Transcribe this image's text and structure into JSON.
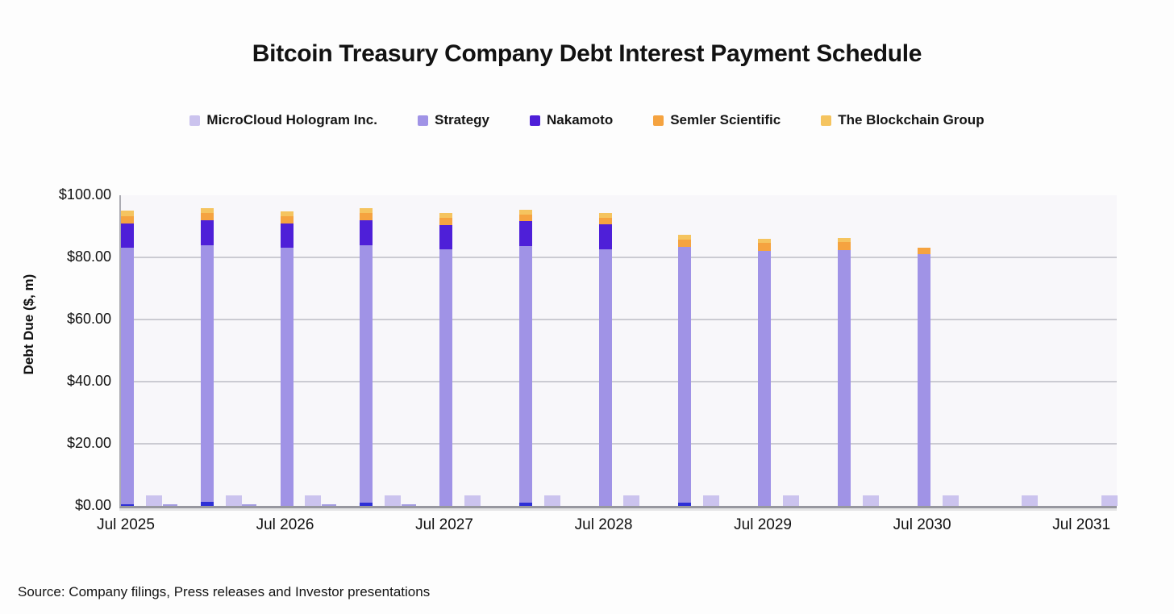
{
  "source": {
    "text": "Source: Company filings, Press releases and Investor presentations"
  },
  "chart_data": {
    "type": "bar",
    "stacked": true,
    "title": "Bitcoin Treasury Company Debt Interest Payment Schedule",
    "ylabel": "Debt Due ($, m)",
    "xlabel": "",
    "ylim": [
      0,
      100
    ],
    "grid": "horizontal",
    "legend_position": "top",
    "yticks": [
      {
        "v": 0,
        "label": "$0.00"
      },
      {
        "v": 20,
        "label": "$20.00"
      },
      {
        "v": 40,
        "label": "$40.00"
      },
      {
        "v": 60,
        "label": "$60.00"
      },
      {
        "v": 80,
        "label": "$80.00"
      },
      {
        "v": 100,
        "label": "$100.00"
      }
    ],
    "xticks": [
      {
        "m": 0,
        "label": "Jul 2025"
      },
      {
        "m": 12,
        "label": "Jul 2026"
      },
      {
        "m": 24,
        "label": "Jul 2027"
      },
      {
        "m": 36,
        "label": "Jul 2028"
      },
      {
        "m": 48,
        "label": "Jul 2029"
      },
      {
        "m": 60,
        "label": "Jul 2030"
      },
      {
        "m": 72,
        "label": "Jul 2031"
      }
    ],
    "palette": {
      "microcloud": "#CBC3EE",
      "strategy": "#A093E6",
      "nakamoto": "#4E1FD8",
      "nakamoto_early": "#2E30D6",
      "semler": "#F5A340",
      "blockchain": "#F5C45F",
      "mini": "#A49CE0"
    },
    "series": [
      {
        "name": "MicroCloud Hologram Inc.",
        "color": "microcloud"
      },
      {
        "name": "Strategy",
        "color": "strategy"
      },
      {
        "name": "Nakamoto",
        "color": "nakamoto"
      },
      {
        "name": "Semler Scientific",
        "color": "semler"
      },
      {
        "name": "The Blockchain Group",
        "color": "blockchain"
      }
    ],
    "bars": [
      {
        "kind": "semi",
        "m": 0,
        "segments": [
          {
            "c": "nakamoto_early",
            "v": 0.4
          },
          {
            "c": "strategy",
            "v": 82.6
          },
          {
            "c": "nakamoto",
            "v": 8.0
          },
          {
            "c": "semler",
            "v": 2.3
          },
          {
            "c": "blockchain",
            "v": 1.7
          }
        ]
      },
      {
        "kind": "micro",
        "m": 2,
        "segments": [
          {
            "c": "microcloud",
            "v": 3.5
          }
        ]
      },
      {
        "kind": "mini",
        "m": 3.2,
        "segments": [
          {
            "c": "mini",
            "v": 0.6
          }
        ]
      },
      {
        "kind": "semi",
        "m": 6,
        "segments": [
          {
            "c": "nakamoto_early",
            "v": 1.3
          },
          {
            "c": "strategy",
            "v": 82.7
          },
          {
            "c": "nakamoto",
            "v": 8.0
          },
          {
            "c": "semler",
            "v": 2.2
          },
          {
            "c": "blockchain",
            "v": 1.6
          }
        ]
      },
      {
        "kind": "micro",
        "m": 8,
        "segments": [
          {
            "c": "microcloud",
            "v": 3.5
          }
        ]
      },
      {
        "kind": "mini",
        "m": 9.2,
        "segments": [
          {
            "c": "mini",
            "v": 0.6
          }
        ]
      },
      {
        "kind": "semi",
        "m": 12,
        "segments": [
          {
            "c": "strategy",
            "v": 83.0
          },
          {
            "c": "nakamoto",
            "v": 8.0
          },
          {
            "c": "semler",
            "v": 2.2
          },
          {
            "c": "blockchain",
            "v": 1.6
          }
        ]
      },
      {
        "kind": "micro",
        "m": 14,
        "segments": [
          {
            "c": "microcloud",
            "v": 3.5
          }
        ]
      },
      {
        "kind": "mini",
        "m": 15.2,
        "segments": [
          {
            "c": "mini",
            "v": 0.6
          }
        ]
      },
      {
        "kind": "semi",
        "m": 18,
        "segments": [
          {
            "c": "nakamoto_early",
            "v": 1.0
          },
          {
            "c": "strategy",
            "v": 82.9
          },
          {
            "c": "nakamoto",
            "v": 8.1
          },
          {
            "c": "semler",
            "v": 2.2
          },
          {
            "c": "blockchain",
            "v": 1.6
          }
        ]
      },
      {
        "kind": "micro",
        "m": 20,
        "segments": [
          {
            "c": "microcloud",
            "v": 3.5
          }
        ]
      },
      {
        "kind": "mini",
        "m": 21.2,
        "segments": [
          {
            "c": "mini",
            "v": 0.6
          }
        ]
      },
      {
        "kind": "semi",
        "m": 24,
        "segments": [
          {
            "c": "strategy",
            "v": 82.6
          },
          {
            "c": "nakamoto",
            "v": 7.9
          },
          {
            "c": "semler",
            "v": 2.2
          },
          {
            "c": "blockchain",
            "v": 1.5
          }
        ]
      },
      {
        "kind": "micro",
        "m": 26,
        "segments": [
          {
            "c": "microcloud",
            "v": 3.5
          }
        ]
      },
      {
        "kind": "semi",
        "m": 30,
        "segments": [
          {
            "c": "nakamoto_early",
            "v": 1.0
          },
          {
            "c": "strategy",
            "v": 82.6
          },
          {
            "c": "nakamoto",
            "v": 8.1
          },
          {
            "c": "semler",
            "v": 2.2
          },
          {
            "c": "blockchain",
            "v": 1.5
          }
        ]
      },
      {
        "kind": "micro",
        "m": 32,
        "segments": [
          {
            "c": "microcloud",
            "v": 3.5
          }
        ]
      },
      {
        "kind": "semi",
        "m": 36,
        "segments": [
          {
            "c": "strategy",
            "v": 82.7
          },
          {
            "c": "nakamoto",
            "v": 7.9
          },
          {
            "c": "semler",
            "v": 2.2
          },
          {
            "c": "blockchain",
            "v": 1.5
          }
        ]
      },
      {
        "kind": "micro",
        "m": 38,
        "segments": [
          {
            "c": "microcloud",
            "v": 3.5
          }
        ]
      },
      {
        "kind": "semi",
        "m": 42,
        "segments": [
          {
            "c": "nakamoto_early",
            "v": 1.0
          },
          {
            "c": "strategy",
            "v": 82.4
          },
          {
            "c": "semler",
            "v": 2.4
          },
          {
            "c": "blockchain",
            "v": 1.4
          }
        ]
      },
      {
        "kind": "micro",
        "m": 44,
        "segments": [
          {
            "c": "microcloud",
            "v": 3.5
          }
        ]
      },
      {
        "kind": "semi",
        "m": 48,
        "segments": [
          {
            "c": "strategy",
            "v": 82.2
          },
          {
            "c": "semler",
            "v": 2.5
          },
          {
            "c": "blockchain",
            "v": 1.4
          }
        ]
      },
      {
        "kind": "micro",
        "m": 50,
        "segments": [
          {
            "c": "microcloud",
            "v": 3.5
          }
        ]
      },
      {
        "kind": "semi",
        "m": 54,
        "segments": [
          {
            "c": "strategy",
            "v": 82.4
          },
          {
            "c": "semler",
            "v": 2.5
          },
          {
            "c": "blockchain",
            "v": 1.4
          }
        ]
      },
      {
        "kind": "micro",
        "m": 56,
        "segments": [
          {
            "c": "microcloud",
            "v": 3.5
          }
        ]
      },
      {
        "kind": "semi",
        "m": 60,
        "segments": [
          {
            "c": "strategy",
            "v": 81.0
          },
          {
            "c": "semler",
            "v": 2.0
          }
        ]
      },
      {
        "kind": "micro",
        "m": 62,
        "segments": [
          {
            "c": "microcloud",
            "v": 3.5
          }
        ]
      },
      {
        "kind": "micro",
        "m": 68,
        "segments": [
          {
            "c": "microcloud",
            "v": 3.5
          }
        ]
      },
      {
        "kind": "micro",
        "m": 74,
        "segments": [
          {
            "c": "microcloud",
            "v": 3.5
          }
        ]
      }
    ]
  }
}
